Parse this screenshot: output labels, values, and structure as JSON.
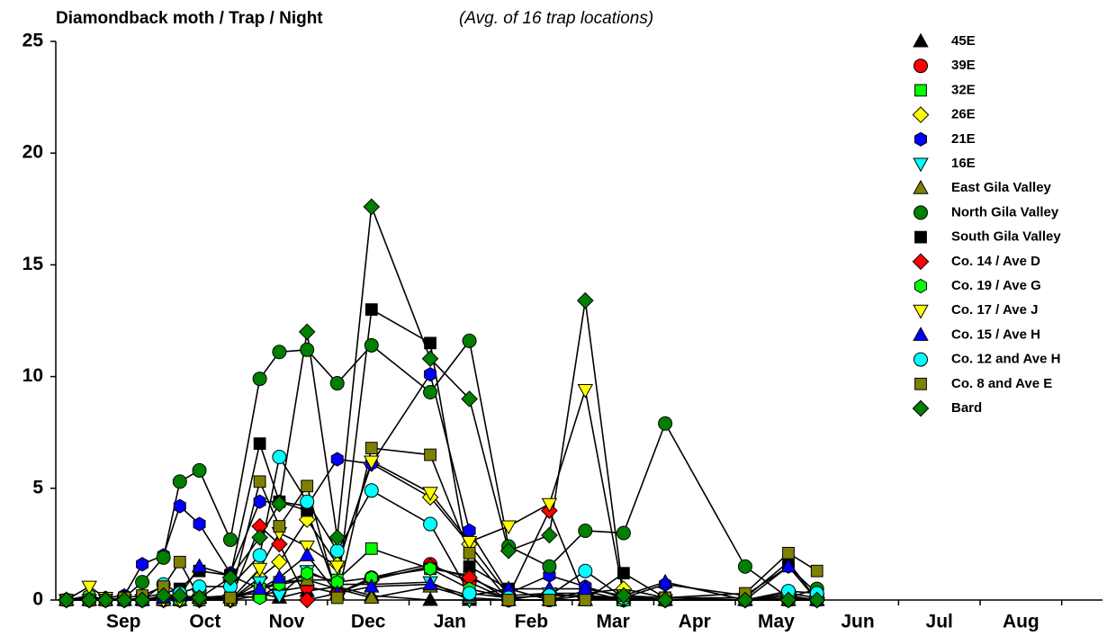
{
  "chart_data": {
    "type": "line",
    "title": "Diamondback moth / Trap / Night",
    "subtitle": "(Avg. of 16 trap locations)",
    "x": [
      0.8,
      1.08,
      1.28,
      1.51,
      1.73,
      1.99,
      2.19,
      2.43,
      2.81,
      3.17,
      3.41,
      3.75,
      4.12,
      4.54,
      5.26,
      5.74,
      6.22,
      6.72,
      7.16,
      7.63,
      8.14,
      9.12,
      9.65,
      10.0
    ],
    "xlim": [
      0.67,
      13.5
    ],
    "xticks": [
      {
        "value": 1.5,
        "label": "Sep"
      },
      {
        "value": 2.5,
        "label": "Oct"
      },
      {
        "value": 3.5,
        "label": "Nov"
      },
      {
        "value": 4.5,
        "label": "Dec"
      },
      {
        "value": 5.5,
        "label": "Jan"
      },
      {
        "value": 6.5,
        "label": "Feb"
      },
      {
        "value": 7.5,
        "label": "Mar"
      },
      {
        "value": 8.5,
        "label": "Apr"
      },
      {
        "value": 9.5,
        "label": "May"
      },
      {
        "value": 10.5,
        "label": "Jun"
      },
      {
        "value": 11.5,
        "label": "Jul"
      },
      {
        "value": 12.5,
        "label": "Aug"
      }
    ],
    "ylim": [
      0,
      25
    ],
    "yticks": [
      0,
      5,
      10,
      15,
      20,
      25
    ],
    "line_color": "#000000",
    "series": [
      {
        "name": "45E",
        "color": "#000000",
        "marker": "triangle-up",
        "values": [
          0,
          0,
          0,
          0,
          0,
          0,
          0,
          0.1,
          0.2,
          0.3,
          0.1,
          0.4,
          0.6,
          0.2,
          0,
          0,
          0,
          0,
          0,
          0,
          0,
          0,
          0,
          0
        ]
      },
      {
        "name": "39E",
        "color": "#ff0000",
        "marker": "circle",
        "values": [
          0,
          0,
          0,
          0,
          0,
          0,
          0,
          0,
          0,
          0.2,
          0.4,
          0.6,
          0.3,
          1.0,
          1.6,
          0.8,
          0,
          0,
          0.2,
          0,
          0,
          0,
          0,
          0
        ]
      },
      {
        "name": "32E",
        "color": "#00ff00",
        "marker": "square",
        "values": [
          0,
          0,
          0,
          0,
          0,
          0,
          0,
          0,
          0,
          0.5,
          0.8,
          0.9,
          0.9,
          2.3,
          1.4,
          1.1,
          0,
          0,
          0.4,
          0,
          0,
          0,
          0,
          0
        ]
      },
      {
        "name": "26E",
        "color": "#ffff00",
        "marker": "diamond",
        "values": [
          0,
          0.1,
          0,
          0,
          0,
          0,
          0,
          0,
          0,
          1.0,
          1.7,
          3.6,
          1.6,
          6.1,
          4.6,
          2.5,
          0.2,
          0.3,
          0.3,
          0.5,
          0.1,
          0,
          0.3,
          0.1
        ]
      },
      {
        "name": "21E",
        "color": "#0000ff",
        "marker": "hexagon",
        "values": [
          0,
          0,
          0.1,
          0.2,
          1.6,
          2.0,
          4.2,
          3.4,
          1.2,
          4.4,
          4.4,
          4.2,
          6.3,
          6.1,
          10.1,
          3.1,
          0.3,
          1.1,
          0.6,
          0.1,
          0.7,
          0.2,
          1.5,
          0.3
        ]
      },
      {
        "name": "16E",
        "color": "#00ffff",
        "marker": "triangle-down",
        "values": [
          0,
          0,
          0,
          0,
          0,
          0,
          0.1,
          0.2,
          0,
          0.8,
          0.2,
          1.3,
          0.7,
          0.7,
          0.8,
          0,
          0,
          0.3,
          0.1,
          0,
          0,
          0,
          0.2,
          0
        ]
      },
      {
        "name": "East Gila Valley",
        "color": "#808000",
        "marker": "triangle-up",
        "values": [
          0,
          0,
          0,
          0,
          0,
          0,
          0,
          0.1,
          0.1,
          0.5,
          0.7,
          0.9,
          0.5,
          0.1,
          0.6,
          0.1,
          0,
          0,
          0,
          0.1,
          0,
          0,
          0,
          0
        ]
      },
      {
        "name": "North Gila Valley",
        "color": "#008000",
        "marker": "circle",
        "values": [
          0,
          0,
          0,
          0.1,
          0.8,
          1.9,
          5.3,
          5.8,
          2.7,
          9.9,
          11.1,
          11.2,
          9.7,
          11.4,
          9.3,
          11.6,
          2.4,
          1.5,
          3.1,
          3.0,
          7.9,
          1.5,
          0.1,
          0.5
        ]
      },
      {
        "name": "South Gila Valley",
        "color": "#000000",
        "marker": "square",
        "values": [
          0,
          0,
          0,
          0,
          0.1,
          0.3,
          0.5,
          1.3,
          1.1,
          7.0,
          4.4,
          4.0,
          0.3,
          13.0,
          11.5,
          1.5,
          0.5,
          0,
          0,
          1.2,
          0.1,
          0.1,
          1.7,
          0
        ]
      },
      {
        "name": "Co. 14 / Ave D",
        "color": "#ff0000",
        "marker": "diamond",
        "values": [
          0,
          0,
          0,
          0,
          0,
          0.1,
          0.1,
          0.1,
          0,
          3.3,
          2.5,
          0,
          0.3,
          0.9,
          1.5,
          1.0,
          0.2,
          4.0,
          0.1,
          0.1,
          0,
          0,
          0.1,
          0
        ]
      },
      {
        "name": "Co. 19 / Ave G",
        "color": "#00ff00",
        "marker": "hexagon",
        "values": [
          0,
          0.2,
          0,
          0,
          0,
          0.1,
          0,
          0.1,
          0.2,
          0.1,
          0.7,
          1.2,
          0.8,
          1.0,
          1.4,
          0.5,
          0.1,
          0.2,
          0.2,
          0.1,
          0,
          0,
          0,
          0
        ]
      },
      {
        "name": "Co. 17 / Ave J",
        "color": "#ffff00",
        "marker": "triangle-down",
        "values": [
          0,
          0.6,
          0.1,
          0,
          0,
          0,
          0,
          0,
          0,
          1.4,
          3.0,
          2.4,
          1.5,
          6.2,
          4.8,
          2.6,
          3.3,
          4.3,
          9.4,
          0.2,
          0,
          0,
          0,
          0
        ]
      },
      {
        "name": "Co. 15 / Ave H",
        "color": "#0000ff",
        "marker": "triangle-up",
        "values": [
          0,
          0,
          0,
          0,
          0,
          0.1,
          0.2,
          1.5,
          1.1,
          0.5,
          1.0,
          2.0,
          0.3,
          0.6,
          0.7,
          0.2,
          0.5,
          0.5,
          0.5,
          0.2,
          0.8,
          0,
          1.5,
          0
        ]
      },
      {
        "name": "Co. 12 and Ave H",
        "color": "#00ffff",
        "marker": "circle",
        "values": [
          0,
          0,
          0,
          0,
          0,
          0.7,
          0.3,
          0.6,
          0.6,
          2.0,
          6.4,
          4.4,
          2.2,
          4.9,
          3.4,
          0.3,
          0.1,
          0.2,
          1.3,
          0.1,
          0,
          0,
          0.4,
          0.3
        ]
      },
      {
        "name": "Co. 8 and Ave E",
        "color": "#808000",
        "marker": "square",
        "values": [
          0,
          0,
          0,
          0.1,
          0.2,
          0.6,
          1.7,
          0.1,
          0.1,
          5.3,
          3.3,
          5.1,
          0.1,
          6.8,
          6.5,
          2.1,
          0,
          0,
          0,
          0.2,
          0.1,
          0.3,
          2.1,
          1.3
        ]
      },
      {
        "name": "Bard",
        "color": "#008000",
        "marker": "diamond",
        "values": [
          0,
          0,
          0,
          0,
          0,
          0.2,
          0.2,
          0.1,
          1.0,
          2.8,
          4.3,
          12.0,
          2.8,
          17.6,
          10.8,
          9.0,
          2.2,
          2.9,
          13.4,
          0.2,
          0,
          0,
          0,
          0
        ]
      }
    ]
  }
}
